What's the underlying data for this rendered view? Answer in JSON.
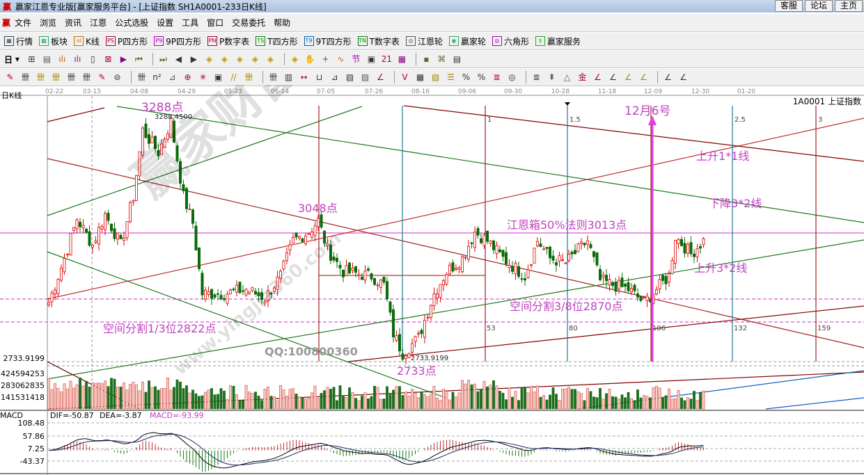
{
  "window": {
    "logo": "赢",
    "title": "赢家江恩专业版[赢家服务平台] - [上证指数  SH1A0001-233日K线]",
    "buttons": [
      "客服",
      "论坛",
      "主页"
    ]
  },
  "menu": {
    "logo": "赢",
    "items": [
      "文件",
      "浏览",
      "资讯",
      "江恩",
      "公式选股",
      "设置",
      "工具",
      "窗口",
      "交易委托",
      "帮助"
    ]
  },
  "toolbar1": [
    {
      "icon": "table-icon",
      "glyph": "▦",
      "label": "行情",
      "color": "#345"
    },
    {
      "icon": "blocks-icon",
      "glyph": "▩",
      "label": "板块",
      "color": "#2a6"
    },
    {
      "icon": "kline-icon",
      "glyph": "ııl",
      "label": "K线",
      "color": "#c60"
    },
    {
      "icon": "ps-icon",
      "glyph": "PS",
      "label": "P四方形",
      "color": "#a03"
    },
    {
      "icon": "p9-icon",
      "glyph": "P9",
      "label": "9P四方形",
      "color": "#a0a"
    },
    {
      "icon": "pn-icon",
      "glyph": "PN",
      "label": "P数字表",
      "color": "#a03"
    },
    {
      "icon": "ts-icon",
      "glyph": "TS",
      "label": "T四方形",
      "color": "#080"
    },
    {
      "icon": "t9-icon",
      "glyph": "T9",
      "label": "9T四方形",
      "color": "#06a"
    },
    {
      "icon": "tn-icon",
      "glyph": "TN",
      "label": "T数字表",
      "color": "#080"
    },
    {
      "icon": "gann-wheel-icon",
      "glyph": "◎",
      "label": "江恩轮",
      "color": "#555"
    },
    {
      "icon": "winner-wheel-icon",
      "glyph": "◉",
      "label": "赢家轮",
      "color": "#2a6"
    },
    {
      "icon": "hexagon-icon",
      "glyph": "◎",
      "label": "六角形",
      "color": "#a0a"
    },
    {
      "icon": "dollar-icon",
      "glyph": "$",
      "label": "赢家服务",
      "color": "#2a2"
    }
  ],
  "toolbar2": {
    "period": "日",
    "icons": [
      [
        "window-icon",
        "⊞"
      ],
      [
        "doc-icon",
        "▤"
      ],
      [
        "bar3-icon",
        "ılı"
      ],
      [
        "bar9-icon",
        "ılı"
      ],
      [
        "candle-icon",
        "▯"
      ],
      [
        "mode-icon",
        "⊠"
      ],
      [
        "flag-icon",
        "▶"
      ],
      [
        "first-icon",
        "⏮"
      ],
      [
        "last-icon",
        "⏭"
      ],
      [
        "left-icon",
        "◀"
      ],
      [
        "right-icon",
        "▶"
      ],
      [
        "diamond-left-icon",
        "◈"
      ],
      [
        "diamond-right-icon",
        "◈"
      ],
      [
        "diamond-expand-icon",
        "◈"
      ],
      [
        "diamond-shrink-icon",
        "◈"
      ],
      [
        "diamond-all-icon",
        "◈"
      ],
      [
        "diamond-up-icon",
        "◈"
      ],
      [
        "hand-icon",
        "✋"
      ],
      [
        "crosshair-icon",
        "+"
      ],
      [
        "wave-icon",
        "∿"
      ],
      [
        "node-icon",
        "节"
      ],
      [
        "pattern-icon",
        "▣"
      ],
      [
        "calendar-icon",
        "21"
      ],
      [
        "calc-icon",
        "▦"
      ],
      [
        "save-icon",
        "▪"
      ],
      [
        "network-icon",
        "⌘"
      ],
      [
        "print-icon",
        "▤"
      ]
    ]
  },
  "toolbar3": {
    "icons": [
      [
        "pen-icon",
        "✎"
      ],
      [
        "grid-icon",
        "卌"
      ],
      [
        "gold-grid-icon",
        "卌"
      ],
      [
        "gold-grid2-icon",
        "卌"
      ],
      [
        "fib-icon",
        "卌"
      ],
      [
        "fib2-icon",
        "卌"
      ],
      [
        "pencil-icon",
        "✎"
      ],
      [
        "circle-icon",
        "⊜"
      ],
      [
        "lines-icon",
        "卌"
      ],
      [
        "n2-icon",
        "n²"
      ],
      [
        "angle-icon",
        "⊿"
      ],
      [
        "spiral-icon",
        "⊕"
      ],
      [
        "star-icon",
        "✳"
      ],
      [
        "square-icon",
        "▣"
      ],
      [
        "parallel-icon",
        "//"
      ],
      [
        "gann-icon",
        "卌"
      ],
      [
        "gann2-icon",
        "卌"
      ],
      [
        "cycle-icon",
        "▥"
      ],
      [
        "range-icon",
        "↔"
      ],
      [
        "box-icon",
        "⊔"
      ],
      [
        "fan-icon",
        "⊿"
      ],
      [
        "fan-box-icon",
        "▨"
      ],
      [
        "fan-box2-icon",
        "▨"
      ],
      [
        "angle2-icon",
        "∠"
      ],
      [
        "v-icon",
        "V"
      ],
      [
        "grid2-icon",
        "▦"
      ],
      [
        "hatch-icon",
        "▧"
      ],
      [
        "ruler-icon",
        "☰"
      ],
      [
        "pct-angle-icon",
        "%"
      ],
      [
        "percent-icon",
        "%"
      ],
      [
        "pct-lines-icon",
        "≣"
      ],
      [
        "gold-coin-icon",
        "◎"
      ],
      [
        "gold-lines-icon",
        "≣"
      ],
      [
        "rocket-icon",
        "⇞"
      ],
      [
        "line-a-icon",
        "△"
      ],
      [
        "gold-line-icon",
        "金"
      ],
      [
        "j-angle-icon",
        "∠"
      ],
      [
        "f-angle-icon",
        "∠"
      ],
      [
        "gold-angle-icon",
        "∠"
      ],
      [
        "angle-b-icon",
        "∠"
      ],
      [
        "angle-c-icon",
        "∠"
      ],
      [
        "four-angle-icon",
        "∠"
      ]
    ]
  },
  "chart_data": {
    "type": "candlestick",
    "panel_label": "日K线",
    "symbol_label": "1A0001  上证指数",
    "x_ticks": [
      "02-22",
      "03-15",
      "04-08",
      "04-29",
      "05-23",
      "06-14",
      "07-05",
      "07-26",
      "08-16",
      "09-06",
      "09-30",
      "10-28",
      "11-18",
      "12-09",
      "12-30",
      "01-20"
    ],
    "price_axis_labels": [
      "2733.9199"
    ],
    "price_path": [
      [
        0,
        2860
      ],
      [
        5,
        2960
      ],
      [
        9,
        3050
      ],
      [
        14,
        2990
      ],
      [
        18,
        3060
      ],
      [
        23,
        2990
      ],
      [
        27,
        3100
      ],
      [
        30,
        3250
      ],
      [
        35,
        3200
      ],
      [
        39,
        3270
      ],
      [
        43,
        3100
      ],
      [
        46,
        3040
      ],
      [
        49,
        2880
      ],
      [
        56,
        2880
      ],
      [
        63,
        2890
      ],
      [
        69,
        2870
      ],
      [
        74,
        2920
      ],
      [
        78,
        3000
      ],
      [
        83,
        3020
      ],
      [
        86,
        3045
      ],
      [
        89,
        2980
      ],
      [
        94,
        2930
      ],
      [
        103,
        2920
      ],
      [
        107,
        2900
      ],
      [
        110,
        2790
      ],
      [
        113,
        2745
      ],
      [
        118,
        2780
      ],
      [
        123,
        2880
      ],
      [
        127,
        2930
      ],
      [
        132,
        2960
      ],
      [
        136,
        3020
      ],
      [
        140,
        3000
      ],
      [
        145,
        2960
      ],
      [
        152,
        2920
      ],
      [
        156,
        3000
      ],
      [
        160,
        2960
      ],
      [
        165,
        2950
      ],
      [
        172,
        3000
      ],
      [
        176,
        2910
      ],
      [
        180,
        2900
      ],
      [
        185,
        2890
      ],
      [
        190,
        2860
      ],
      [
        194,
        2890
      ],
      [
        198,
        2920
      ],
      [
        200,
        3010
      ],
      [
        205,
        2970
      ],
      [
        209,
        3000
      ]
    ],
    "high_label": "3288.4500",
    "low_label": "2733.9199",
    "volume": {
      "axis_labels": [
        "424594253",
        "283062835",
        "141531418"
      ]
    },
    "macd": {
      "label": "MACD",
      "dif": "DIF=-50.87",
      "dea": "DEA=-3.87",
      "macd": "MACD=-93.99",
      "axis_labels": [
        "108.48",
        "57.86",
        "7.25",
        "-43.37"
      ]
    },
    "gann_cycle_labels": {
      "top": [
        "1",
        "1.5",
        "2.5",
        "3"
      ],
      "bottom": [
        "53",
        "80",
        "106",
        "132",
        "159"
      ]
    },
    "annotations": {
      "high": "3288点",
      "p3048": "3048点",
      "box50": "江恩箱50%法则3013点",
      "date": "12月6号",
      "up11": "上升1*1线",
      "down32": "下降3*2线",
      "up32": "上升3*2线",
      "split38": "空间分割3/8位2870点",
      "split13": "空间分割1/3位2822点",
      "low": "2733点",
      "qq": "QQ:100800360"
    },
    "watermark": {
      "text": "赢家财富网",
      "url": "www.yingjia360.com"
    },
    "colors": {
      "up": "#e00000",
      "down": "#0a6b0a",
      "annotation": "#c040c0",
      "pink_line": "#e070e0"
    }
  }
}
